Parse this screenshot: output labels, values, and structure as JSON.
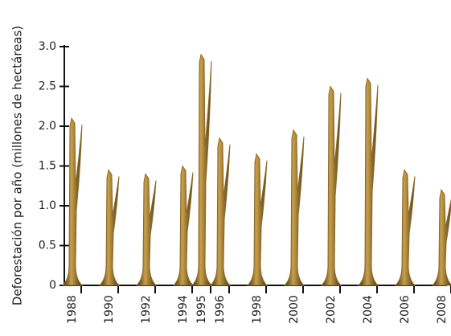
{
  "chart_data": {
    "type": "bar",
    "y_label": "Deforestación por año (millones de hectáreas)",
    "x": [
      1988,
      1990,
      1992,
      1994,
      1995,
      1996,
      1998,
      2000,
      2002,
      2004,
      2006,
      2008
    ],
    "values": [
      2.1,
      1.45,
      1.4,
      1.5,
      2.9,
      1.85,
      1.65,
      1.95,
      2.5,
      2.6,
      1.45,
      1.2
    ],
    "color": "#8a6a2a",
    "xlim": [
      1988,
      2008
    ],
    "xticks": [
      1988,
      1990,
      1992,
      1994,
      1995,
      1996,
      1998,
      2000,
      2002,
      2004,
      2006,
      2008
    ],
    "ylim": [
      0,
      3
    ],
    "yticks": [
      0,
      {
        "value": 0.5,
        "label": "0.5"
      },
      {
        "value": 1,
        "label": "1.0"
      },
      {
        "value": 1.5,
        "label": "1.5"
      },
      {
        "value": 2,
        "label": "2.0"
      },
      {
        "value": 2.5,
        "label": "2.5"
      },
      {
        "value": 3,
        "label": "3.0"
      }
    ]
  }
}
